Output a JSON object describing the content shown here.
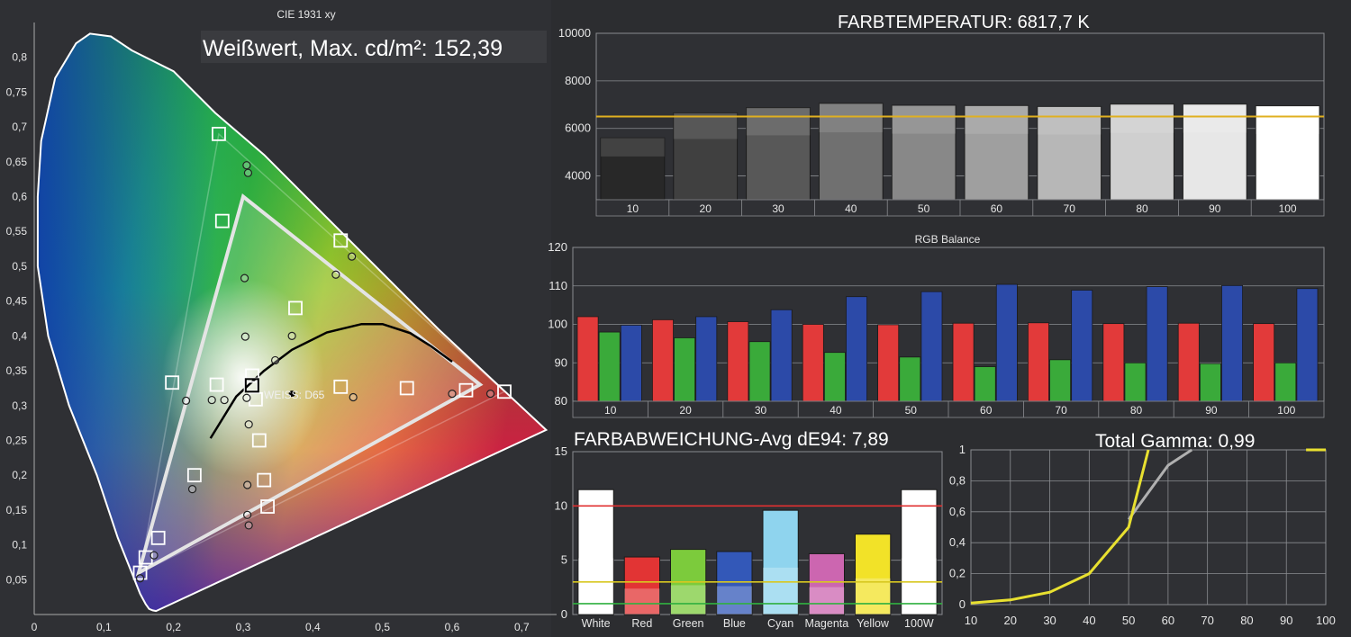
{
  "cie": {
    "title": "CIE 1931 xy",
    "white_label": "Weißwert, Max. cd/m²: 152,39",
    "d65_label": "WEISS: D65",
    "x_ticks": [
      "0",
      "0,1",
      "0,2",
      "0,3",
      "0,4",
      "0,5",
      "0,6",
      "0,7"
    ],
    "y_ticks": [
      "0,05",
      "0,1",
      "0,15",
      "0,2",
      "0,25",
      "0,3",
      "0,35",
      "0,4",
      "0,45",
      "0,5",
      "0,55",
      "0,6",
      "0,65",
      "0,7",
      "0,75",
      "0,8"
    ]
  },
  "colors": {
    "background": "#2c2d30",
    "panel": "#2f3034",
    "grid": "#8a8c90",
    "tick_text": "#e6e6e6",
    "ref_line": "#e0b020",
    "red_bar": "#e23a3a",
    "green_bar": "#3aaa3a",
    "blue_bar": "#2c4aa8",
    "tolerance_red": "#e03030",
    "tolerance_yellow": "#d8c820",
    "tolerance_green": "#30b040",
    "gamma_measured": "#e8e030",
    "gamma_target": "#b0b0b0"
  },
  "chart_data": [
    {
      "type": "scatter",
      "title": "CIE 1931 xy",
      "xlim": [
        0,
        0.75
      ],
      "ylim": [
        0,
        0.85
      ],
      "reference_gamut": [
        [
          0.64,
          0.33
        ],
        [
          0.3,
          0.6
        ],
        [
          0.15,
          0.06
        ]
      ],
      "measured_gamut": [
        [
          0.675,
          0.32
        ],
        [
          0.265,
          0.69
        ],
        [
          0.152,
          0.06
        ]
      ],
      "white_point": [
        0.3127,
        0.329
      ],
      "target_squares": [
        [
          0.675,
          0.32
        ],
        [
          0.265,
          0.69
        ],
        [
          0.152,
          0.06
        ],
        [
          0.44,
          0.537
        ],
        [
          0.27,
          0.565
        ],
        [
          0.375,
          0.44
        ],
        [
          0.198,
          0.333
        ],
        [
          0.262,
          0.33
        ],
        [
          0.311,
          0.33
        ],
        [
          0.313,
          0.343
        ],
        [
          0.318,
          0.309
        ],
        [
          0.44,
          0.327
        ],
        [
          0.535,
          0.325
        ],
        [
          0.62,
          0.322
        ],
        [
          0.323,
          0.25
        ],
        [
          0.33,
          0.193
        ],
        [
          0.335,
          0.155
        ],
        [
          0.23,
          0.2
        ],
        [
          0.178,
          0.11
        ],
        [
          0.16,
          0.082
        ]
      ],
      "measured_points": [
        [
          0.305,
          0.645
        ],
        [
          0.307,
          0.634
        ],
        [
          0.456,
          0.514
        ],
        [
          0.302,
          0.483
        ],
        [
          0.433,
          0.488
        ],
        [
          0.37,
          0.4
        ],
        [
          0.303,
          0.399
        ],
        [
          0.346,
          0.365
        ],
        [
          0.218,
          0.307
        ],
        [
          0.255,
          0.308
        ],
        [
          0.273,
          0.308
        ],
        [
          0.305,
          0.311
        ],
        [
          0.458,
          0.312
        ],
        [
          0.6,
          0.317
        ],
        [
          0.655,
          0.317
        ],
        [
          0.308,
          0.273
        ],
        [
          0.306,
          0.186
        ],
        [
          0.227,
          0.18
        ],
        [
          0.306,
          0.143
        ],
        [
          0.308,
          0.128
        ],
        [
          0.172,
          0.085
        ],
        [
          0.152,
          0.052
        ]
      ],
      "blackbody_curve": [
        [
          0.253,
          0.253
        ],
        [
          0.29,
          0.313
        ],
        [
          0.33,
          0.35
        ],
        [
          0.37,
          0.38
        ],
        [
          0.42,
          0.405
        ],
        [
          0.47,
          0.417
        ],
        [
          0.5,
          0.417
        ],
        [
          0.54,
          0.404
        ],
        [
          0.57,
          0.385
        ],
        [
          0.6,
          0.363
        ]
      ]
    },
    {
      "type": "bar",
      "title": "FARBTEMPERATUR: 6817,7 K",
      "categories": [
        "10",
        "20",
        "30",
        "40",
        "50",
        "60",
        "70",
        "80",
        "90",
        "100"
      ],
      "values": [
        5600,
        6650,
        6870,
        7050,
        6970,
        6960,
        6920,
        7020,
        7020,
        6950
      ],
      "reference_line": 6500,
      "ylim": [
        3000,
        10000
      ],
      "yticks": [
        "4000",
        "6000",
        "8000",
        "10000"
      ]
    },
    {
      "type": "bar",
      "title": "RGB Balance",
      "categories": [
        "10",
        "20",
        "30",
        "40",
        "50",
        "60",
        "70",
        "80",
        "90",
        "100"
      ],
      "series": [
        {
          "name": "R",
          "values": [
            102,
            101.2,
            100.7,
            100,
            99.9,
            100.3,
            100.4,
            100.2,
            100.3,
            100.2
          ]
        },
        {
          "name": "G",
          "values": [
            98,
            96.5,
            95.5,
            92.7,
            91.5,
            89,
            90.8,
            90,
            89.8,
            90
          ]
        },
        {
          "name": "B",
          "values": [
            99.8,
            102,
            103.8,
            107.2,
            108.5,
            110.4,
            108.9,
            109.8,
            110.1,
            109.3
          ]
        }
      ],
      "ylim": [
        80,
        120
      ],
      "yticks": [
        "80",
        "90",
        "100",
        "110",
        "120"
      ]
    },
    {
      "type": "bar",
      "title": "FARBABWEICHUNG-Avg dE94: 7,89",
      "categories": [
        "White",
        "Red",
        "Green",
        "Blue",
        "Cyan",
        "Magenta",
        "Yellow",
        "100W"
      ],
      "values": [
        11.5,
        5.3,
        6,
        5.8,
        9.6,
        5.6,
        7.4,
        11.5
      ],
      "bar_colors": [
        "#ffffff",
        "#e23434",
        "#7ccb3c",
        "#3358b8",
        "#8fd4ee",
        "#cc66b0",
        "#f2e228",
        "#ffffff"
      ],
      "thresholds": [
        10,
        3,
        1
      ],
      "ylim": [
        0,
        15
      ],
      "yticks": [
        "0",
        "5",
        "10",
        "15"
      ]
    },
    {
      "type": "line",
      "title": "Total Gamma: 0,99",
      "x": [
        10,
        20,
        30,
        40,
        50,
        55
      ],
      "series": [
        {
          "name": "",
          "values": [
            0.01,
            0.03,
            0.08,
            0.2,
            0.5,
            1
          ]
        }
      ],
      "target": {
        "x": [
          50,
          60,
          66
        ],
        "values": [
          0.55,
          0.9,
          1
        ]
      },
      "xlim": [
        10,
        100
      ],
      "ylim": [
        0,
        1
      ],
      "xticks": [
        "10",
        "20",
        "30",
        "40",
        "50",
        "60",
        "70",
        "80",
        "90",
        "100"
      ],
      "yticks": [
        "0",
        "0,2",
        "0,4",
        "0,6",
        "0,8",
        "1"
      ]
    }
  ]
}
